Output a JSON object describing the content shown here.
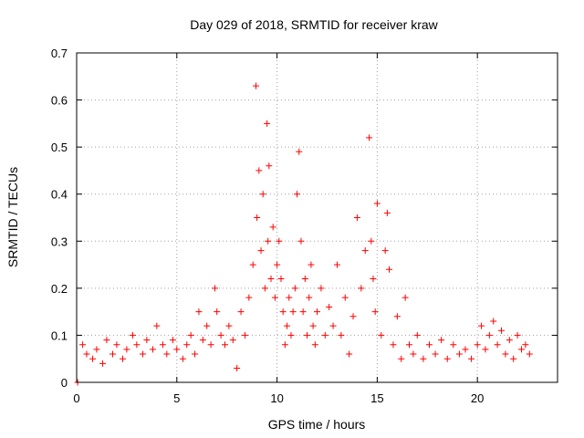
{
  "chart_data": {
    "type": "scatter",
    "title": "Day 029 of 2018, SRMTID for receiver kraw",
    "xlabel": "GPS time / hours",
    "ylabel": "SRMTID / TECUs",
    "xlim": [
      0,
      24
    ],
    "ylim": [
      0,
      0.7
    ],
    "x_ticks": [
      0,
      5,
      10,
      15,
      20
    ],
    "y_ticks": [
      0,
      0.1,
      0.2,
      0.3,
      0.4,
      0.5,
      0.6,
      0.7
    ],
    "x_tick_labels": [
      "0",
      "5",
      "10",
      "15",
      "20"
    ],
    "y_tick_labels": [
      "0",
      "0.1",
      "0.2",
      "0.3",
      "0.4",
      "0.5",
      "0.6",
      "0.7"
    ],
    "grid": true,
    "marker": "+",
    "series_color": "#ff0000",
    "series": [
      {
        "name": "SRMTID",
        "x": [
          0.05,
          0.3,
          0.5,
          0.8,
          1.0,
          1.3,
          1.5,
          1.8,
          2.0,
          2.3,
          2.5,
          2.8,
          3.0,
          3.3,
          3.5,
          3.8,
          4.0,
          4.3,
          4.5,
          4.8,
          5.0,
          5.3,
          5.5,
          5.7,
          5.9,
          6.1,
          6.3,
          6.5,
          6.7,
          6.9,
          7.0,
          7.2,
          7.4,
          7.6,
          7.8,
          8.0,
          8.2,
          8.4,
          8.6,
          8.8,
          8.95,
          9.0,
          9.1,
          9.2,
          9.3,
          9.4,
          9.5,
          9.55,
          9.6,
          9.7,
          9.8,
          9.9,
          10.0,
          10.1,
          10.2,
          10.3,
          10.4,
          10.5,
          10.6,
          10.7,
          10.8,
          10.9,
          11.0,
          11.1,
          11.2,
          11.3,
          11.4,
          11.5,
          11.6,
          11.7,
          11.8,
          11.9,
          12.0,
          12.2,
          12.4,
          12.6,
          12.8,
          13.0,
          13.2,
          13.4,
          13.6,
          13.8,
          14.0,
          14.2,
          14.4,
          14.6,
          14.7,
          14.8,
          14.9,
          15.0,
          15.2,
          15.4,
          15.5,
          15.6,
          15.8,
          16.0,
          16.2,
          16.4,
          16.6,
          16.8,
          17.0,
          17.3,
          17.6,
          17.9,
          18.2,
          18.5,
          18.8,
          19.1,
          19.4,
          19.7,
          20.0,
          20.2,
          20.4,
          20.6,
          20.8,
          21.0,
          21.2,
          21.4,
          21.6,
          21.8,
          22.0,
          22.2,
          22.4,
          22.6
        ],
        "y": [
          0.0,
          0.08,
          0.06,
          0.05,
          0.07,
          0.04,
          0.09,
          0.06,
          0.08,
          0.05,
          0.07,
          0.1,
          0.08,
          0.06,
          0.09,
          0.07,
          0.12,
          0.08,
          0.06,
          0.09,
          0.07,
          0.05,
          0.08,
          0.1,
          0.06,
          0.15,
          0.09,
          0.12,
          0.08,
          0.2,
          0.15,
          0.1,
          0.08,
          0.12,
          0.09,
          0.03,
          0.15,
          0.1,
          0.18,
          0.25,
          0.63,
          0.35,
          0.45,
          0.28,
          0.4,
          0.2,
          0.55,
          0.3,
          0.46,
          0.22,
          0.33,
          0.18,
          0.25,
          0.3,
          0.22,
          0.15,
          0.08,
          0.12,
          0.18,
          0.1,
          0.15,
          0.2,
          0.4,
          0.49,
          0.3,
          0.15,
          0.22,
          0.1,
          0.18,
          0.25,
          0.12,
          0.08,
          0.15,
          0.2,
          0.1,
          0.16,
          0.12,
          0.25,
          0.1,
          0.18,
          0.06,
          0.14,
          0.35,
          0.2,
          0.28,
          0.52,
          0.3,
          0.22,
          0.15,
          0.38,
          0.1,
          0.28,
          0.36,
          0.24,
          0.08,
          0.14,
          0.05,
          0.18,
          0.08,
          0.06,
          0.1,
          0.05,
          0.08,
          0.06,
          0.09,
          0.05,
          0.08,
          0.06,
          0.07,
          0.05,
          0.08,
          0.12,
          0.07,
          0.1,
          0.13,
          0.08,
          0.11,
          0.06,
          0.09,
          0.05,
          0.1,
          0.07,
          0.08,
          0.06
        ]
      }
    ]
  }
}
